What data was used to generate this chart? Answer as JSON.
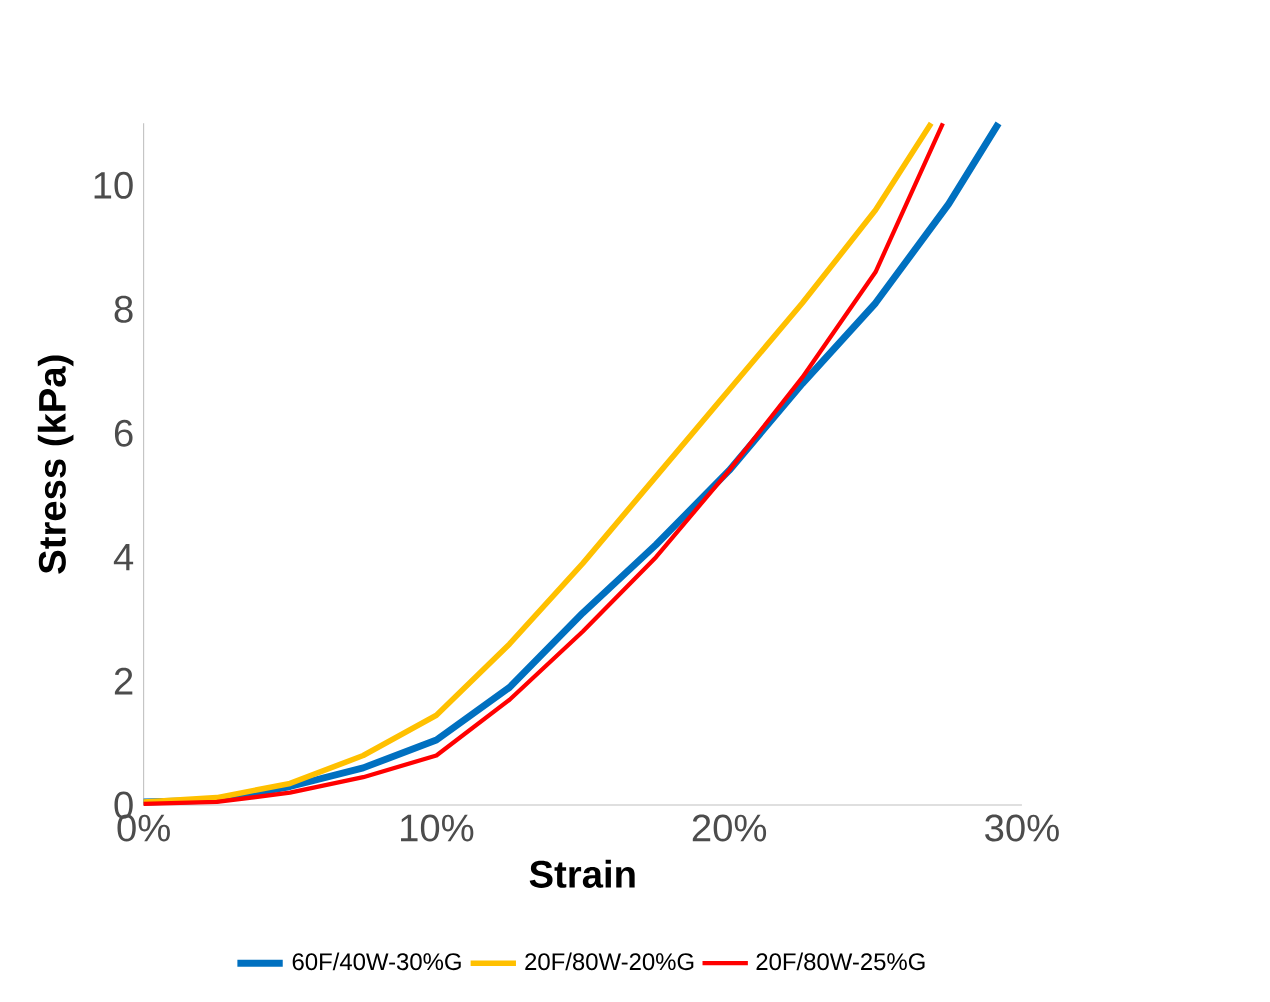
{
  "chart_data": {
    "type": "line",
    "xlabel": "Strain",
    "ylabel": "Stress (kPa)",
    "xlim": [
      0,
      30
    ],
    "ylim": [
      0,
      11
    ],
    "xticks": [
      {
        "value": 0,
        "label": "0%"
      },
      {
        "value": 10,
        "label": "10%"
      },
      {
        "value": 20,
        "label": "20%"
      },
      {
        "value": 30,
        "label": "30%"
      }
    ],
    "yticks": [
      0,
      2,
      4,
      6,
      8,
      10
    ],
    "legend": "bottom",
    "grid": false,
    "marker": "none",
    "series": [
      {
        "name": "60F/40W-30%G",
        "color": "#0070c0",
        "x": [
          0,
          2.5,
          5,
          7.5,
          10,
          12.5,
          15,
          17.5,
          20,
          22.5,
          25,
          27.5,
          29.2
        ],
        "values": [
          0.05,
          0.08,
          0.3,
          0.6,
          1.05,
          1.9,
          3.1,
          4.2,
          5.4,
          6.8,
          8.1,
          9.7,
          11
        ]
      },
      {
        "name": "20F/80W-20%G",
        "color": "#ffc000",
        "x": [
          0,
          2.5,
          5,
          7.5,
          10,
          12.5,
          15,
          17.5,
          20,
          22.5,
          25,
          26.9
        ],
        "values": [
          0.05,
          0.12,
          0.35,
          0.8,
          1.45,
          2.6,
          3.9,
          5.3,
          6.7,
          8.1,
          9.6,
          11
        ]
      },
      {
        "name": "20F/80W-25%G",
        "color": "#ff0000",
        "x": [
          0,
          2.5,
          5,
          7.5,
          10,
          12.5,
          15,
          17.5,
          20,
          22.5,
          25,
          27.3
        ],
        "values": [
          0.02,
          0.05,
          0.2,
          0.45,
          0.8,
          1.7,
          2.8,
          4.0,
          5.4,
          6.9,
          8.6,
          11
        ]
      }
    ]
  }
}
